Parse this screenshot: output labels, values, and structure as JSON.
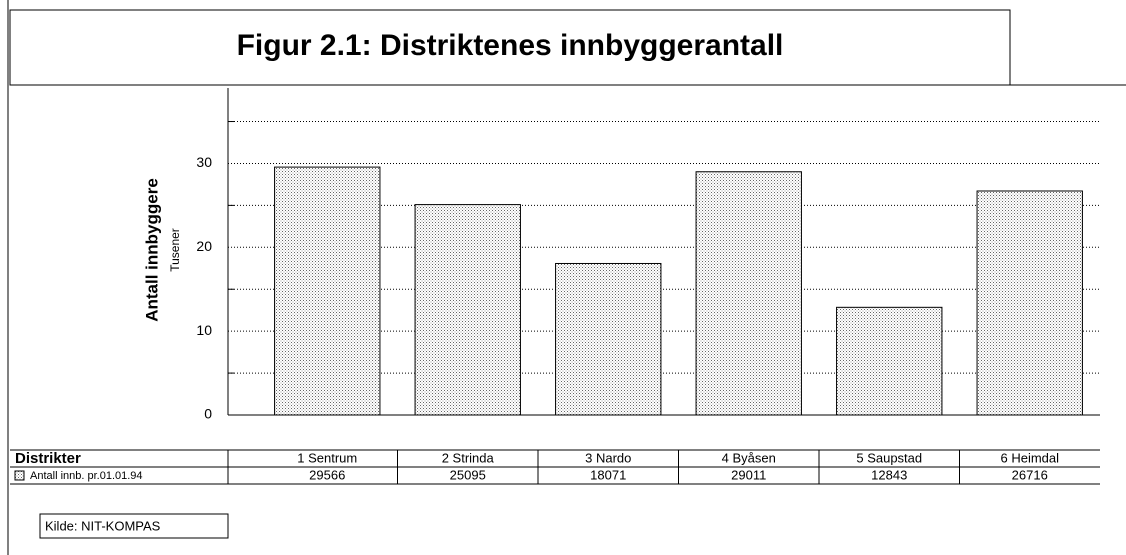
{
  "chart_data": {
    "type": "bar",
    "title": "Figur 2.1: Distriktenes innbyggerantall",
    "y_label": "Antall innbyggere",
    "y_unit_label": "Tusener",
    "table_header": "Distrikter",
    "source": "Kilde: NIT-KOMPAS",
    "categories": [
      "1 Sentrum",
      "2 Strinda",
      "3 Nardo",
      "4 Byåsen",
      "5 Saupstad",
      "6 Heimdal"
    ],
    "series": [
      {
        "name": "Antall innb. pr.01.01.94",
        "color": "#d8d8d8",
        "values": [
          29.566,
          25.095,
          18.071,
          29.011,
          12.843,
          26.716
        ],
        "value_labels": [
          "29566",
          "25095",
          "18071",
          "29011",
          "12843",
          "26716"
        ]
      }
    ],
    "ylim": [
      0,
      39
    ],
    "yticks": [
      0,
      10,
      20,
      30
    ],
    "minor_yticks": [
      5,
      15,
      25,
      35
    ],
    "grid": true
  }
}
